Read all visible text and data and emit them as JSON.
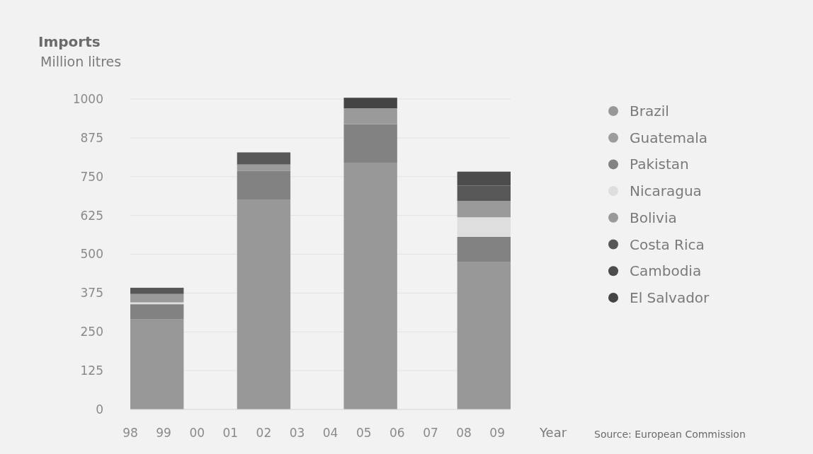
{
  "chart_data": {
    "type": "bar",
    "title": "Imports",
    "ylabel": "Million litres",
    "xlabel": "Year",
    "annotations": [
      "Source: European Commission"
    ],
    "x": [
      1998.8,
      2002,
      2005.2,
      2008.6
    ],
    "stacked": true,
    "series": [
      {
        "name": "Brazil",
        "color": "#989898",
        "values": [
          290,
          675,
          795,
          476
        ]
      },
      {
        "name": "Guatemala",
        "color": "#9c9c9c",
        "values": [
          null,
          null,
          null,
          null
        ]
      },
      {
        "name": "Pakistan",
        "color": "#828282",
        "values": [
          49,
          93,
          124,
          80
        ]
      },
      {
        "name": "Nicaragua",
        "color": "#dedede",
        "values": [
          6,
          null,
          null,
          63
        ]
      },
      {
        "name": "Bolivia",
        "color": "#9a9a9a",
        "values": [
          27,
          21,
          51,
          53
        ]
      },
      {
        "name": "Costa Rica",
        "color": "#575757",
        "values": [
          20,
          39,
          null,
          49
        ]
      },
      {
        "name": "Cambodia",
        "color": "#4c4c4c",
        "values": [
          null,
          null,
          null,
          45
        ]
      },
      {
        "name": "El Salvador",
        "color": "#444444",
        "values": [
          null,
          null,
          34,
          null
        ]
      }
    ],
    "ylim": [
      0,
      1000
    ],
    "yticks": [
      0,
      125,
      250,
      375,
      500,
      625,
      750,
      875,
      1000
    ],
    "xlim": [
      1998,
      2009.4
    ],
    "xticks": [
      {
        "value": 1998,
        "label": "98"
      },
      {
        "value": 1999,
        "label": "99"
      },
      {
        "value": 2000,
        "label": "00"
      },
      {
        "value": 2001,
        "label": "01"
      },
      {
        "value": 2002,
        "label": "02"
      },
      {
        "value": 2003,
        "label": "03"
      },
      {
        "value": 2004,
        "label": "04"
      },
      {
        "value": 2005,
        "label": "05"
      },
      {
        "value": 2006,
        "label": "06"
      },
      {
        "value": 2007,
        "label": "07"
      },
      {
        "value": 2008,
        "label": "08"
      },
      {
        "value": 2009,
        "label": "09"
      }
    ],
    "grid": "y",
    "legend": "right",
    "marker": "circle"
  }
}
